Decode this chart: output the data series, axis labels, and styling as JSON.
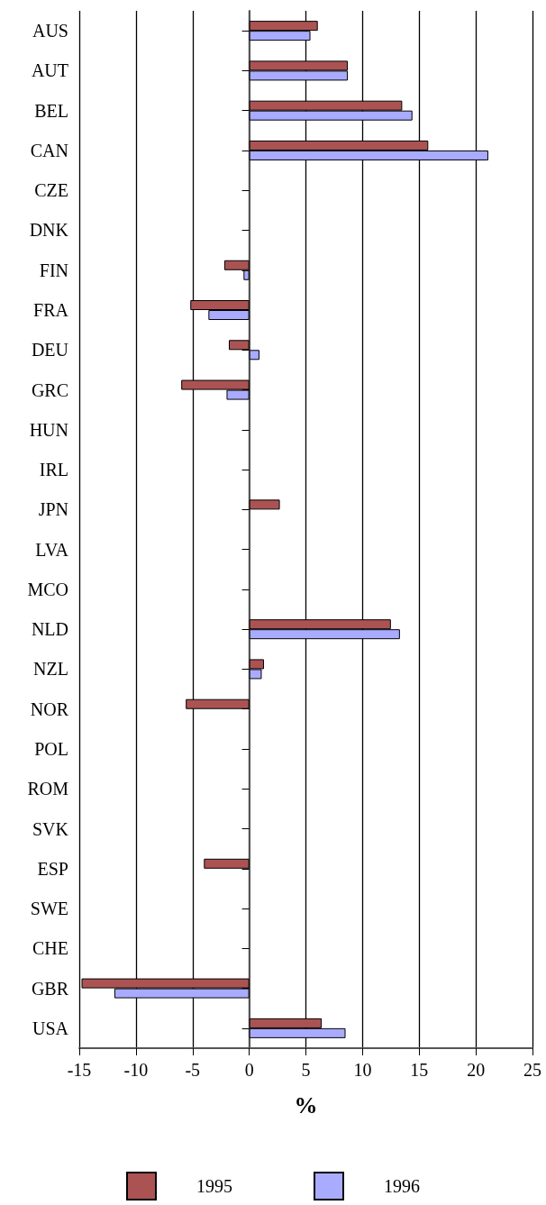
{
  "chart_data": {
    "type": "bar",
    "orientation": "horizontal",
    "xlabel": "%",
    "categories": [
      "AUS",
      "AUT",
      "BEL",
      "CAN",
      "CZE",
      "DNK",
      "FIN",
      "FRA",
      "DEU",
      "GRC",
      "HUN",
      "IRL",
      "JPN",
      "LVA",
      "MCO",
      "NLD",
      "NZL",
      "NOR",
      "POL",
      "ROM",
      "SVK",
      "ESP",
      "SWE",
      "CHE",
      "GBR",
      "USA"
    ],
    "series": [
      {
        "name": "1995",
        "color": "#ab5353",
        "values": [
          6.05,
          8.7,
          13.5,
          15.8,
          null,
          null,
          -2.2,
          -5.2,
          -1.8,
          -6.0,
          null,
          null,
          2.7,
          null,
          null,
          12.5,
          1.3,
          -5.6,
          null,
          null,
          null,
          -4.0,
          null,
          null,
          -14.8,
          6.4
        ]
      },
      {
        "name": "1996",
        "color": "#a9abfe",
        "values": [
          5.4,
          8.7,
          14.4,
          21.1,
          null,
          null,
          -0.5,
          -3.6,
          0.9,
          -2.0,
          null,
          null,
          null,
          null,
          null,
          13.3,
          1.1,
          null,
          null,
          null,
          null,
          null,
          null,
          null,
          -11.9,
          8.5
        ]
      }
    ],
    "xlim": [
      -15,
      25
    ],
    "xticks": [
      -15,
      -10,
      -5,
      0,
      5,
      10,
      15,
      20,
      25
    ],
    "grid": "x",
    "legend": "bottom"
  }
}
